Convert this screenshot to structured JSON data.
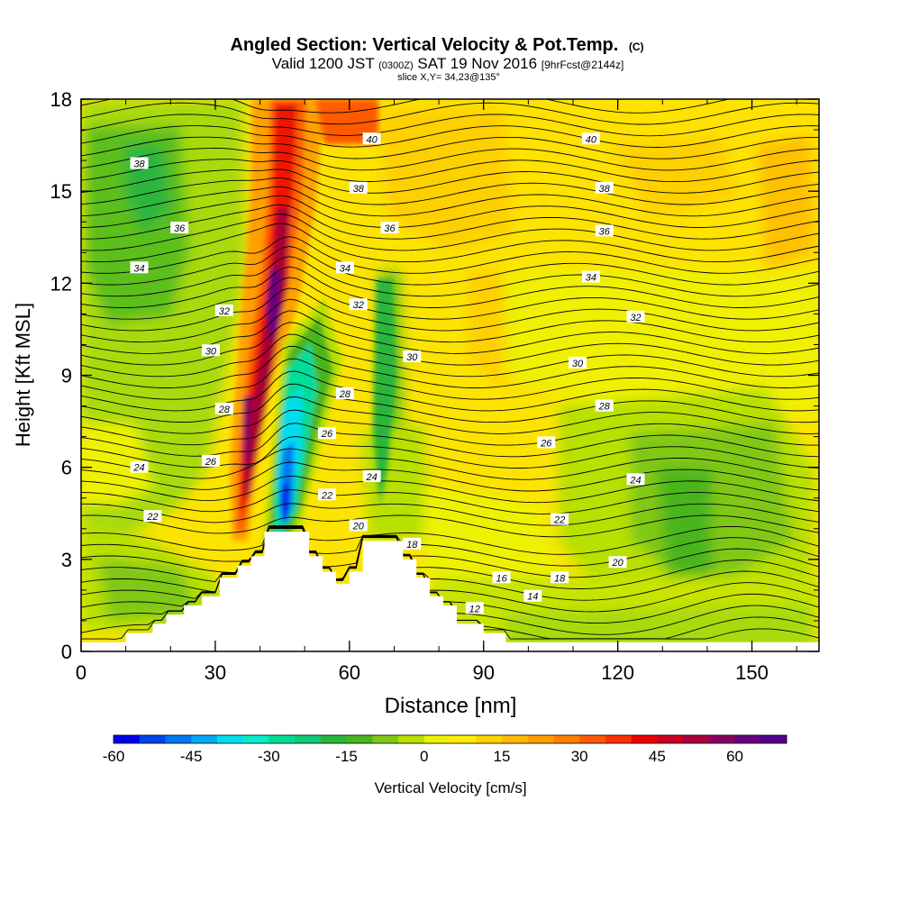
{
  "header": {
    "title_main": "Angled Section: Vertical Velocity & Pot.Temp.",
    "title_tag": "(C)",
    "valid_a": "Valid 1200 JST",
    "valid_b": "(0300Z)",
    "valid_c": "SAT 19 Nov 2016",
    "valid_d": "[9hrFcst@2144z]",
    "slice": "slice X,Y= 34,23@135°"
  },
  "chart_data": {
    "type": "heatmap",
    "xlabel": "Distance [nm]",
    "ylabel": "Height [Kft MSL]",
    "xlim": [
      0,
      165
    ],
    "ylim": [
      0,
      18
    ],
    "xticks": [
      0,
      30,
      60,
      90,
      120,
      150
    ],
    "yticks": [
      0,
      3,
      6,
      9,
      12,
      15,
      18
    ],
    "colorbar": {
      "label": "Vertical Velocity [cm/s]",
      "min": -60,
      "max": 70,
      "step": 5,
      "tick_values": [
        -60,
        -45,
        -30,
        -15,
        0,
        15,
        30,
        45,
        60
      ],
      "colors": [
        "#0000ee",
        "#0044ee",
        "#0077f0",
        "#00aaf5",
        "#00ddee",
        "#00eecc",
        "#00dd99",
        "#10c878",
        "#2ab63c",
        "#4ab51e",
        "#80c818",
        "#b8e000",
        "#eef200",
        "#ffee00",
        "#ffd400",
        "#ffba00",
        "#ffa000",
        "#ff8000",
        "#ff5a00",
        "#ff3000",
        "#ee0000",
        "#cc0020",
        "#aa0040",
        "#880060",
        "#660080",
        "#55008a"
      ]
    },
    "theta_labels": [
      {
        "text": "40",
        "x": 65,
        "y": 16.7
      },
      {
        "text": "40",
        "x": 114,
        "y": 16.7
      },
      {
        "text": "38",
        "x": 13,
        "y": 15.9
      },
      {
        "text": "38",
        "x": 62,
        "y": 15.1
      },
      {
        "text": "38",
        "x": 117,
        "y": 15.1
      },
      {
        "text": "36",
        "x": 22,
        "y": 13.8
      },
      {
        "text": "36",
        "x": 69,
        "y": 13.8
      },
      {
        "text": "36",
        "x": 117,
        "y": 13.7
      },
      {
        "text": "34",
        "x": 13,
        "y": 12.5
      },
      {
        "text": "34",
        "x": 59,
        "y": 12.5
      },
      {
        "text": "34",
        "x": 114,
        "y": 12.2
      },
      {
        "text": "32",
        "x": 32,
        "y": 11.1
      },
      {
        "text": "32",
        "x": 62,
        "y": 11.3
      },
      {
        "text": "32",
        "x": 124,
        "y": 10.9
      },
      {
        "text": "30",
        "x": 29,
        "y": 9.8
      },
      {
        "text": "30",
        "x": 74,
        "y": 9.6
      },
      {
        "text": "30",
        "x": 111,
        "y": 9.4
      },
      {
        "text": "28",
        "x": 32,
        "y": 7.9
      },
      {
        "text": "28",
        "x": 59,
        "y": 8.4
      },
      {
        "text": "28",
        "x": 117,
        "y": 8.0
      },
      {
        "text": "26",
        "x": 29,
        "y": 6.2
      },
      {
        "text": "26",
        "x": 55,
        "y": 7.1
      },
      {
        "text": "26",
        "x": 104,
        "y": 6.8
      },
      {
        "text": "24",
        "x": 13,
        "y": 6.0
      },
      {
        "text": "24",
        "x": 65,
        "y": 5.7
      },
      {
        "text": "24",
        "x": 124,
        "y": 5.6
      },
      {
        "text": "22",
        "x": 16,
        "y": 4.4
      },
      {
        "text": "22",
        "x": 55,
        "y": 5.1
      },
      {
        "text": "22",
        "x": 107,
        "y": 4.3
      },
      {
        "text": "20",
        "x": 62,
        "y": 4.1
      },
      {
        "text": "20",
        "x": 120,
        "y": 2.9
      },
      {
        "text": "18",
        "x": 74,
        "y": 3.5
      },
      {
        "text": "18",
        "x": 107,
        "y": 2.4
      },
      {
        "text": "16",
        "x": 94,
        "y": 2.4
      },
      {
        "text": "14",
        "x": 101,
        "y": 1.8
      },
      {
        "text": "12",
        "x": 88,
        "y": 1.4
      }
    ],
    "terrain_steps": [
      [
        0,
        0.3
      ],
      [
        10,
        0.6
      ],
      [
        16,
        0.9
      ],
      [
        19,
        1.2
      ],
      [
        23,
        1.5
      ],
      [
        27,
        1.8
      ],
      [
        31,
        2.4
      ],
      [
        35,
        2.8
      ],
      [
        38,
        3.1
      ],
      [
        41,
        3.9
      ],
      [
        51,
        3.1
      ],
      [
        54,
        2.6
      ],
      [
        57,
        2.2
      ],
      [
        60,
        2.6
      ],
      [
        63,
        3.6
      ],
      [
        72,
        3.0
      ],
      [
        75,
        2.4
      ],
      [
        78,
        1.8
      ],
      [
        81,
        1.5
      ],
      [
        84,
        0.9
      ],
      [
        90,
        0.6
      ],
      [
        95,
        0.3
      ],
      [
        165,
        0.3
      ]
    ]
  }
}
